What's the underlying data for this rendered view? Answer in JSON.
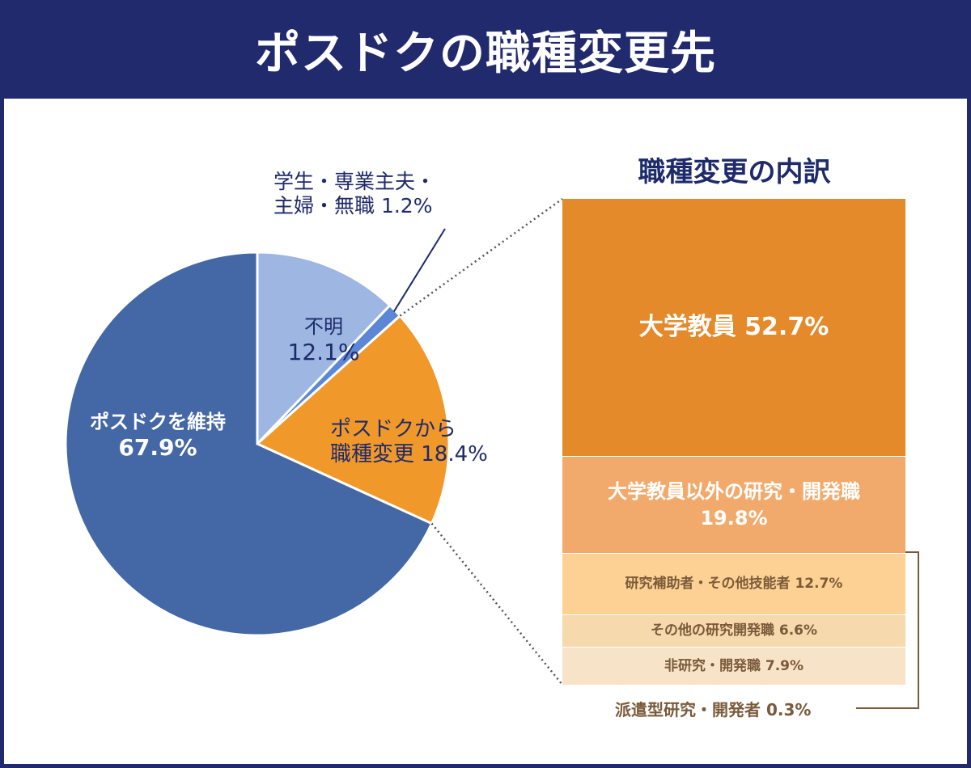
{
  "header": {
    "title": "ポスドクの職種変更先"
  },
  "chart_data": [
    {
      "type": "pie",
      "title": "",
      "slices": [
        {
          "label": "ポスドクを維持",
          "value": 67.9,
          "display": "67.9%",
          "color": "#4467a5"
        },
        {
          "label": "不明",
          "value": 12.1,
          "display": "12.1%",
          "color": "#9db6e2"
        },
        {
          "label": "学生・専業主夫・主婦・無職",
          "value": 1.2,
          "display": "1.2%",
          "color": "#5b87d6"
        },
        {
          "label": "ポスドクから職種変更",
          "value": 18.4,
          "display": "18.4%",
          "color": "#f0992a"
        }
      ],
      "labels": {
        "maintain": {
          "line1": "ポスドクを維持",
          "line2": "67.9%"
        },
        "unknown": {
          "line1": "不明",
          "line2": "12.1%"
        },
        "student": {
          "line1": "学生・専業主夫・",
          "line2": "主婦・無職 1.2%"
        },
        "change": {
          "line1": "ポスドクから",
          "line2": "職種変更 18.4%"
        }
      }
    },
    {
      "type": "bar",
      "stacked": true,
      "title": "職種変更の内訳",
      "segments": [
        {
          "label": "大学教員",
          "value": 52.7,
          "display": "大学教員 52.7%",
          "color": "#e58a2b"
        },
        {
          "label": "大学教員以外の研究・開発職",
          "value": 19.8,
          "line1": "大学教員以外の研究・開発職",
          "line2": "19.8%",
          "color": "#f2aa6c"
        },
        {
          "label": "研究補助者・その他技能者",
          "value": 12.7,
          "display": "研究補助者・その他技能者 12.7%",
          "color": "#fdd193"
        },
        {
          "label": "その他の研究開発職",
          "value": 6.6,
          "display": "その他の研究開発職 6.6%",
          "color": "#f6d9ad"
        },
        {
          "label": "非研究・開発職",
          "value": 7.9,
          "display": "非研究・開発職 7.9%",
          "color": "#f7e4c8"
        },
        {
          "label": "派遣型研究・開発者",
          "value": 0.3,
          "display": "派遣型研究・開発者 0.3%",
          "color": "#f7e4c8"
        }
      ]
    }
  ]
}
